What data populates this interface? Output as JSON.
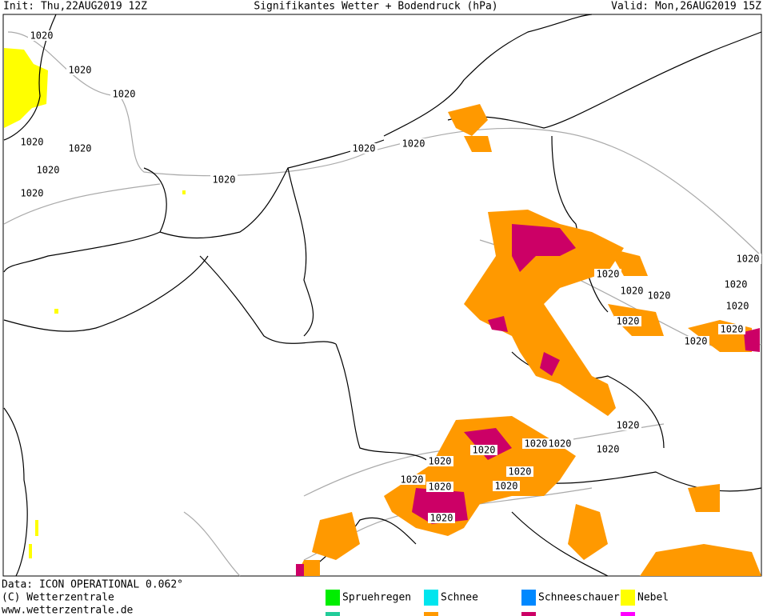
{
  "header": {
    "init": "Init: Thu,22AUG2019 12Z",
    "title": "Signifikantes Wetter +  Bodendruck (hPa)",
    "valid": "Valid: Mon,26AUG2019 15Z"
  },
  "footer": {
    "lines": [
      "Data: ICON OPERATIONAL 0.062°",
      "(C) Wetterzentrale",
      "www.wetterzentrale.de"
    ]
  },
  "legend": [
    {
      "name": "Spruehregen",
      "color": "#00ee00",
      "color2": "#22cc99"
    },
    {
      "name": "Schnee",
      "color": "#00e5ee",
      "color2": "#ff9900"
    },
    {
      "name": "Schneeschauer",
      "color": "#0088ff",
      "color2": "#cc0066"
    },
    {
      "name": "Nebel",
      "color": "#ffff00",
      "color2": "#ff00ff"
    }
  ],
  "map": {
    "isobar_labels": [
      "1020",
      "1020",
      "1020",
      "1020",
      "1020",
      "1020",
      "1020",
      "1020",
      "1020",
      "1020",
      "1020",
      "1020",
      "1020",
      "1020",
      "1020",
      "1020",
      "1020",
      "1020",
      "1020",
      "1020",
      "1020",
      "1020",
      "1020",
      "1020",
      "1020",
      "1020",
      "1020",
      "1020",
      "1020",
      "1020"
    ]
  }
}
